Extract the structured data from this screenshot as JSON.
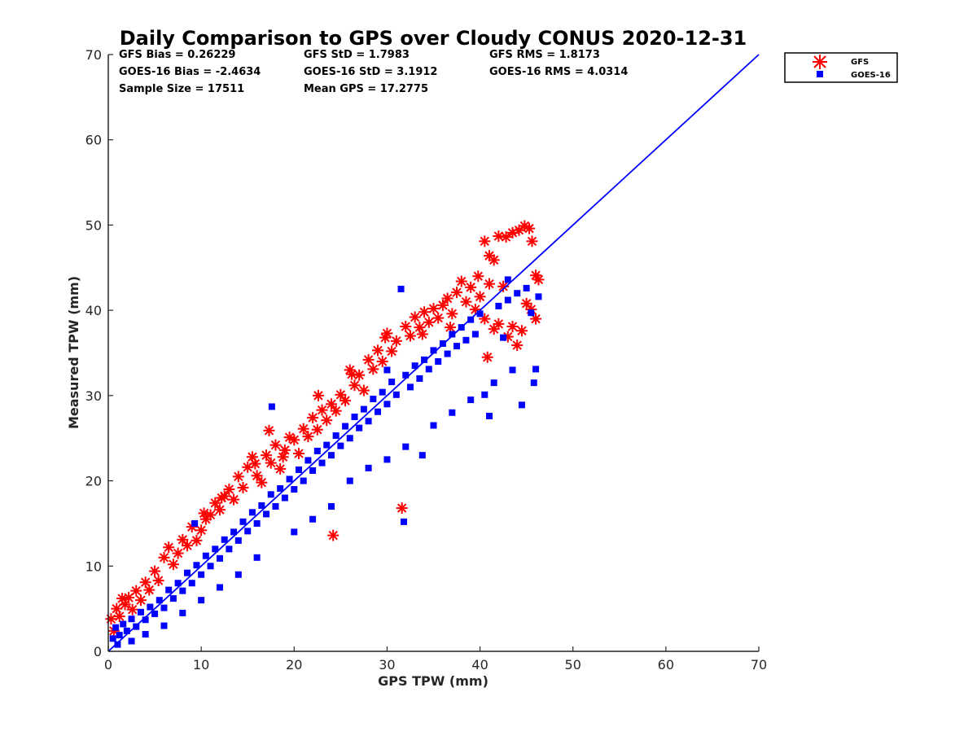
{
  "chart_data": {
    "type": "scatter",
    "title": "Daily Comparison to GPS over Cloudy CONUS 2020-12-31",
    "xlabel": "GPS TPW (mm)",
    "ylabel": "Measured TPW (mm)",
    "xlim": [
      0,
      70
    ],
    "ylim": [
      0,
      70
    ],
    "xticks": [
      "0",
      "10",
      "20",
      "30",
      "40",
      "50",
      "60",
      "70"
    ],
    "yticks": [
      "0",
      "10",
      "20",
      "30",
      "40",
      "50",
      "60",
      "70"
    ],
    "grid": false,
    "legend_position": "outside-top-right",
    "stats": [
      "GFS Bias = 0.26229",
      "GFS StD = 1.7983",
      "GFS RMS = 1.8173",
      "GOES-16 Bias = -2.4634",
      "GOES-16 StD = 3.1912",
      "GOES-16 RMS = 4.0314",
      "Sample Size = 17511",
      "Mean GPS = 17.2775"
    ],
    "reference_line": {
      "x": [
        0,
        70
      ],
      "y": [
        0,
        70
      ],
      "color": "#0000ff"
    },
    "series": [
      {
        "name": "GFS",
        "marker": "asterisk",
        "color": "#ff0000",
        "points": [
          [
            0.3,
            3.8
          ],
          [
            0.6,
            2.4
          ],
          [
            0.9,
            5.0
          ],
          [
            1.2,
            4.1
          ],
          [
            1.5,
            6.2
          ],
          [
            1.8,
            5.5
          ],
          [
            2.2,
            6.3
          ],
          [
            2.6,
            4.9
          ],
          [
            3.0,
            7.1
          ],
          [
            3.5,
            6.0
          ],
          [
            4.0,
            8.1
          ],
          [
            4.4,
            7.2
          ],
          [
            5.0,
            9.4
          ],
          [
            5.4,
            8.3
          ],
          [
            6.0,
            11.0
          ],
          [
            6.5,
            12.2
          ],
          [
            7.0,
            10.2
          ],
          [
            7.5,
            11.5
          ],
          [
            8.0,
            13.1
          ],
          [
            8.5,
            12.4
          ],
          [
            9.0,
            14.6
          ],
          [
            9.5,
            13.0
          ],
          [
            10.0,
            14.2
          ],
          [
            10.5,
            15.5
          ],
          [
            11.0,
            16.0
          ],
          [
            11.5,
            17.4
          ],
          [
            12.0,
            16.6
          ],
          [
            12.5,
            18.2
          ],
          [
            13.0,
            19.0
          ],
          [
            13.5,
            17.8
          ],
          [
            14.0,
            20.5
          ],
          [
            14.5,
            19.2
          ],
          [
            15.0,
            21.6
          ],
          [
            15.5,
            22.8
          ],
          [
            16.0,
            20.6
          ],
          [
            16.5,
            19.8
          ],
          [
            17.0,
            23.0
          ],
          [
            17.3,
            25.9
          ],
          [
            17.5,
            22.1
          ],
          [
            18.0,
            24.2
          ],
          [
            18.5,
            21.4
          ],
          [
            19.0,
            23.6
          ],
          [
            19.5,
            25.1
          ],
          [
            20.0,
            24.8
          ],
          [
            20.5,
            23.2
          ],
          [
            21.0,
            26.1
          ],
          [
            21.5,
            25.2
          ],
          [
            22.0,
            27.4
          ],
          [
            22.5,
            26.0
          ],
          [
            23.0,
            28.3
          ],
          [
            23.5,
            27.1
          ],
          [
            24.0,
            29.0
          ],
          [
            24.2,
            13.6
          ],
          [
            24.5,
            28.2
          ],
          [
            25.0,
            30.1
          ],
          [
            25.5,
            29.4
          ],
          [
            26.0,
            33.0
          ],
          [
            26.5,
            31.2
          ],
          [
            27.0,
            32.4
          ],
          [
            27.5,
            30.6
          ],
          [
            28.0,
            34.2
          ],
          [
            28.5,
            33.1
          ],
          [
            29.0,
            35.3
          ],
          [
            29.5,
            34.0
          ],
          [
            30.0,
            37.3
          ],
          [
            30.5,
            35.2
          ],
          [
            31.0,
            36.4
          ],
          [
            31.6,
            16.8
          ],
          [
            32.0,
            38.1
          ],
          [
            32.5,
            37.0
          ],
          [
            33.0,
            39.2
          ],
          [
            33.5,
            38.0
          ],
          [
            34.0,
            39.8
          ],
          [
            34.5,
            38.6
          ],
          [
            35.0,
            40.2
          ],
          [
            35.5,
            39.1
          ],
          [
            36.0,
            40.6
          ],
          [
            36.5,
            41.4
          ],
          [
            37.0,
            39.6
          ],
          [
            37.5,
            42.1
          ],
          [
            38.0,
            43.4
          ],
          [
            38.5,
            41.0
          ],
          [
            39.0,
            42.7
          ],
          [
            39.5,
            40.1
          ],
          [
            40.0,
            41.6
          ],
          [
            40.5,
            39.0
          ],
          [
            41.0,
            43.1
          ],
          [
            41.5,
            37.8
          ],
          [
            42.0,
            38.4
          ],
          [
            42.5,
            42.8
          ],
          [
            43.0,
            36.9
          ],
          [
            43.5,
            38.1
          ],
          [
            44.0,
            35.9
          ],
          [
            44.5,
            37.6
          ],
          [
            45.0,
            40.8
          ],
          [
            45.5,
            40.1
          ],
          [
            46.0,
            44.1
          ],
          [
            46.3,
            43.6
          ],
          [
            46.0,
            39.0
          ],
          [
            40.5,
            48.1
          ],
          [
            41.0,
            46.4
          ],
          [
            41.5,
            45.9
          ],
          [
            42.0,
            48.7
          ],
          [
            42.8,
            48.6
          ],
          [
            43.5,
            49.1
          ],
          [
            44.2,
            49.4
          ],
          [
            44.8,
            49.9
          ],
          [
            45.3,
            49.6
          ],
          [
            45.6,
            48.1
          ],
          [
            40.8,
            34.5
          ],
          [
            10.3,
            16.2
          ],
          [
            12.2,
            18.0
          ],
          [
            15.8,
            22.0
          ],
          [
            18.8,
            22.8
          ],
          [
            22.6,
            30.0
          ],
          [
            26.2,
            32.5
          ],
          [
            29.8,
            36.8
          ],
          [
            33.8,
            37.2
          ],
          [
            36.8,
            38.0
          ],
          [
            39.8,
            44.0
          ]
        ]
      },
      {
        "name": "GOES-16",
        "marker": "square",
        "color": "#0000ff",
        "points": [
          [
            0.5,
            1.5
          ],
          [
            0.8,
            2.8
          ],
          [
            1.2,
            1.9
          ],
          [
            1.6,
            3.2
          ],
          [
            2.0,
            2.4
          ],
          [
            2.5,
            3.8
          ],
          [
            3.0,
            2.9
          ],
          [
            3.5,
            4.6
          ],
          [
            4.0,
            3.7
          ],
          [
            4.5,
            5.2
          ],
          [
            5.0,
            4.4
          ],
          [
            5.5,
            6.0
          ],
          [
            6.0,
            5.1
          ],
          [
            6.5,
            7.2
          ],
          [
            7.0,
            6.2
          ],
          [
            7.5,
            8.0
          ],
          [
            8.0,
            7.1
          ],
          [
            8.5,
            9.2
          ],
          [
            9.0,
            8.0
          ],
          [
            9.3,
            15.0
          ],
          [
            9.5,
            10.1
          ],
          [
            10.0,
            9.0
          ],
          [
            10.5,
            11.2
          ],
          [
            11.0,
            10.0
          ],
          [
            11.5,
            12.0
          ],
          [
            12.0,
            10.9
          ],
          [
            12.5,
            13.1
          ],
          [
            13.0,
            12.0
          ],
          [
            13.5,
            14.0
          ],
          [
            14.0,
            13.0
          ],
          [
            14.5,
            15.2
          ],
          [
            15.0,
            14.1
          ],
          [
            15.5,
            16.3
          ],
          [
            16.0,
            15.0
          ],
          [
            16.5,
            17.1
          ],
          [
            17.0,
            16.1
          ],
          [
            17.5,
            18.4
          ],
          [
            17.6,
            28.7
          ],
          [
            18.0,
            17.0
          ],
          [
            18.5,
            19.1
          ],
          [
            19.0,
            18.0
          ],
          [
            19.5,
            20.2
          ],
          [
            20.0,
            19.0
          ],
          [
            20.5,
            21.3
          ],
          [
            21.0,
            20.0
          ],
          [
            21.5,
            22.4
          ],
          [
            22.0,
            21.2
          ],
          [
            22.5,
            23.5
          ],
          [
            23.0,
            22.1
          ],
          [
            23.5,
            24.2
          ],
          [
            24.0,
            23.0
          ],
          [
            24.5,
            25.3
          ],
          [
            25.0,
            24.1
          ],
          [
            25.5,
            26.4
          ],
          [
            26.0,
            25.0
          ],
          [
            26.5,
            27.5
          ],
          [
            27.0,
            26.2
          ],
          [
            27.5,
            28.4
          ],
          [
            28.0,
            27.0
          ],
          [
            28.5,
            29.6
          ],
          [
            29.0,
            28.1
          ],
          [
            29.5,
            30.4
          ],
          [
            30.0,
            29.0
          ],
          [
            30.5,
            31.6
          ],
          [
            31.0,
            30.1
          ],
          [
            31.8,
            15.2
          ],
          [
            32.0,
            32.4
          ],
          [
            32.5,
            31.0
          ],
          [
            33.0,
            33.5
          ],
          [
            33.5,
            32.0
          ],
          [
            34.0,
            34.2
          ],
          [
            34.5,
            33.1
          ],
          [
            35.0,
            35.3
          ],
          [
            35.5,
            34.0
          ],
          [
            36.0,
            36.1
          ],
          [
            36.5,
            34.9
          ],
          [
            37.0,
            37.2
          ],
          [
            37.5,
            35.8
          ],
          [
            38.0,
            38.0
          ],
          [
            38.5,
            36.5
          ],
          [
            39.0,
            38.9
          ],
          [
            39.5,
            37.2
          ],
          [
            40.0,
            39.6
          ],
          [
            40.5,
            30.1
          ],
          [
            41.0,
            27.6
          ],
          [
            41.5,
            31.5
          ],
          [
            42.0,
            40.5
          ],
          [
            42.5,
            36.8
          ],
          [
            43.0,
            41.2
          ],
          [
            43.5,
            33.0
          ],
          [
            44.0,
            42.0
          ],
          [
            44.5,
            28.9
          ],
          [
            45.0,
            42.6
          ],
          [
            45.5,
            39.7
          ],
          [
            46.0,
            33.1
          ],
          [
            46.3,
            41.6
          ],
          [
            45.8,
            31.5
          ],
          [
            43.0,
            43.6
          ],
          [
            30.0,
            33.0
          ],
          [
            26.0,
            20.0
          ],
          [
            28.0,
            21.5
          ],
          [
            30.0,
            22.5
          ],
          [
            32.0,
            24.0
          ],
          [
            35.0,
            26.5
          ],
          [
            37.0,
            28.0
          ],
          [
            39.0,
            29.5
          ],
          [
            20.0,
            14.0
          ],
          [
            22.0,
            15.5
          ],
          [
            24.0,
            17.0
          ],
          [
            16.0,
            11.0
          ],
          [
            14.0,
            9.0
          ],
          [
            12.0,
            7.5
          ],
          [
            10.0,
            6.0
          ],
          [
            8.0,
            4.5
          ],
          [
            6.0,
            3.0
          ],
          [
            4.0,
            2.0
          ],
          [
            2.5,
            1.2
          ],
          [
            1.0,
            0.8
          ],
          [
            31.5,
            42.5
          ],
          [
            33.8,
            23.0
          ]
        ]
      }
    ]
  }
}
